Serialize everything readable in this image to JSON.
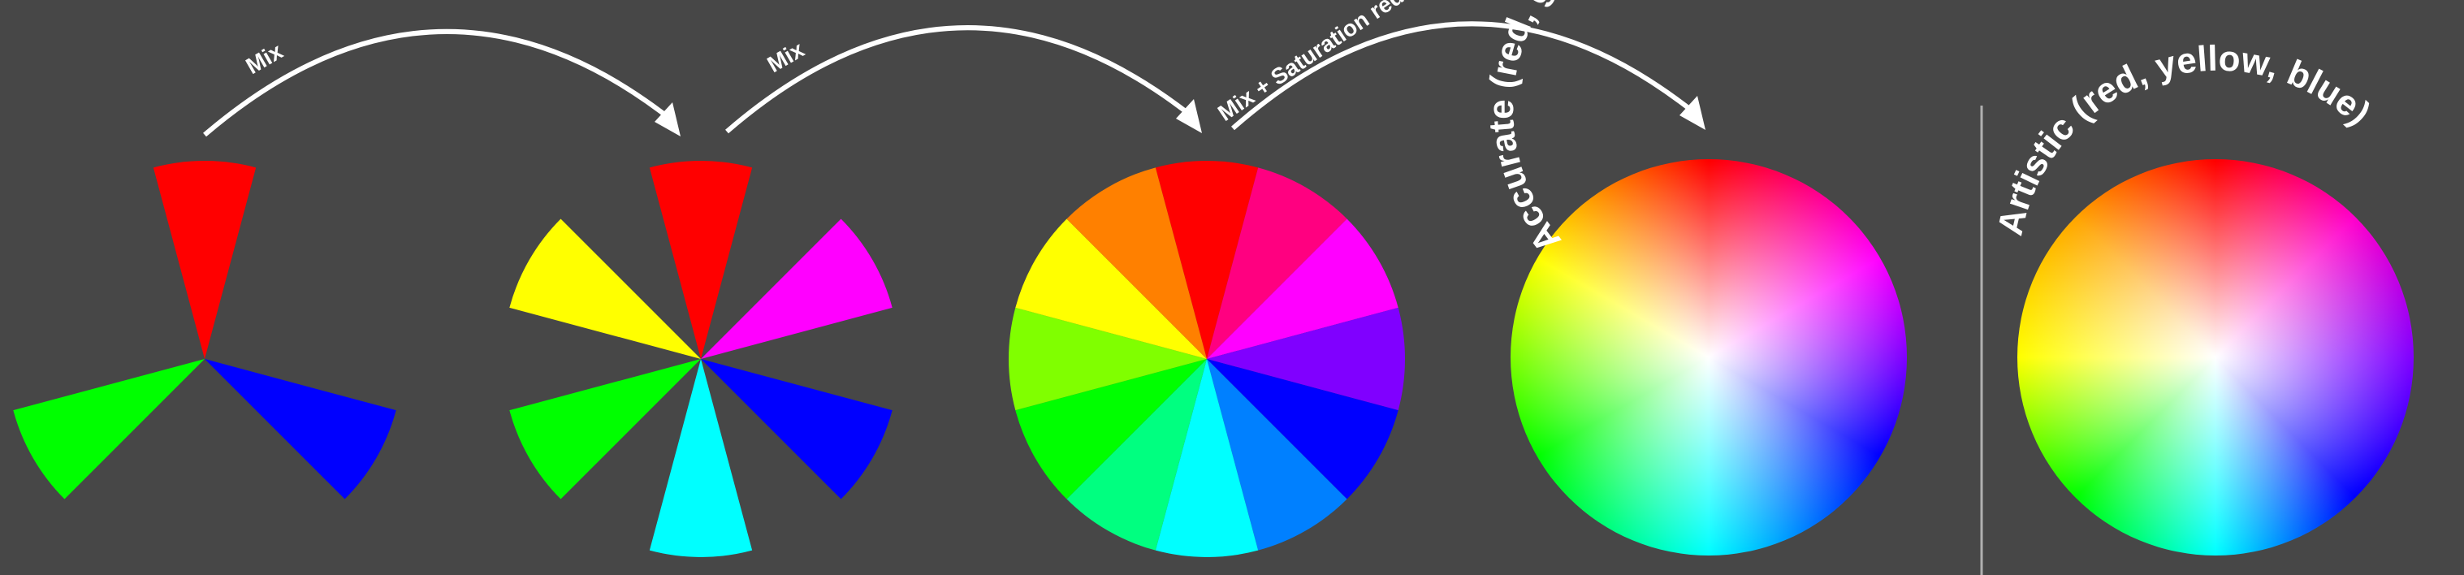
{
  "arrows": {
    "mix1": "Mix",
    "mix2": "Mix",
    "mix3": "Mix + Saturation reduction to center"
  },
  "wheels": {
    "primary": {
      "colors": [
        "#ff0000",
        "#0000ff",
        "#00ff00"
      ]
    },
    "secondary": {
      "colors": [
        "#ff0000",
        "#ff00ff",
        "#0000ff",
        "#00ffff",
        "#00ff00",
        "#ffff00"
      ]
    },
    "tertiary": {
      "colors": [
        "#ff0000",
        "#ff0080",
        "#ff00ff",
        "#8000ff",
        "#0000ff",
        "#0080ff",
        "#00ffff",
        "#00ff80",
        "#00ff00",
        "#80ff00",
        "#ffff00",
        "#ff8000"
      ]
    },
    "accurate": {
      "title": "Accurate (red, green, blue)",
      "colors": [
        "#ff0000",
        "#ff00ff",
        "#0000ff",
        "#00ffff",
        "#00ff00",
        "#ffff00",
        "#ff0000"
      ]
    },
    "artistic": {
      "title": "Artistic (red, yellow, blue)",
      "colors": [
        "#ff0000",
        "#ff00cc",
        "#8000ff",
        "#0000ff",
        "#00ffff",
        "#00ff00",
        "#ffff00",
        "#ffa500",
        "#ff0000"
      ]
    }
  },
  "divider_color": "#b0b0b0"
}
